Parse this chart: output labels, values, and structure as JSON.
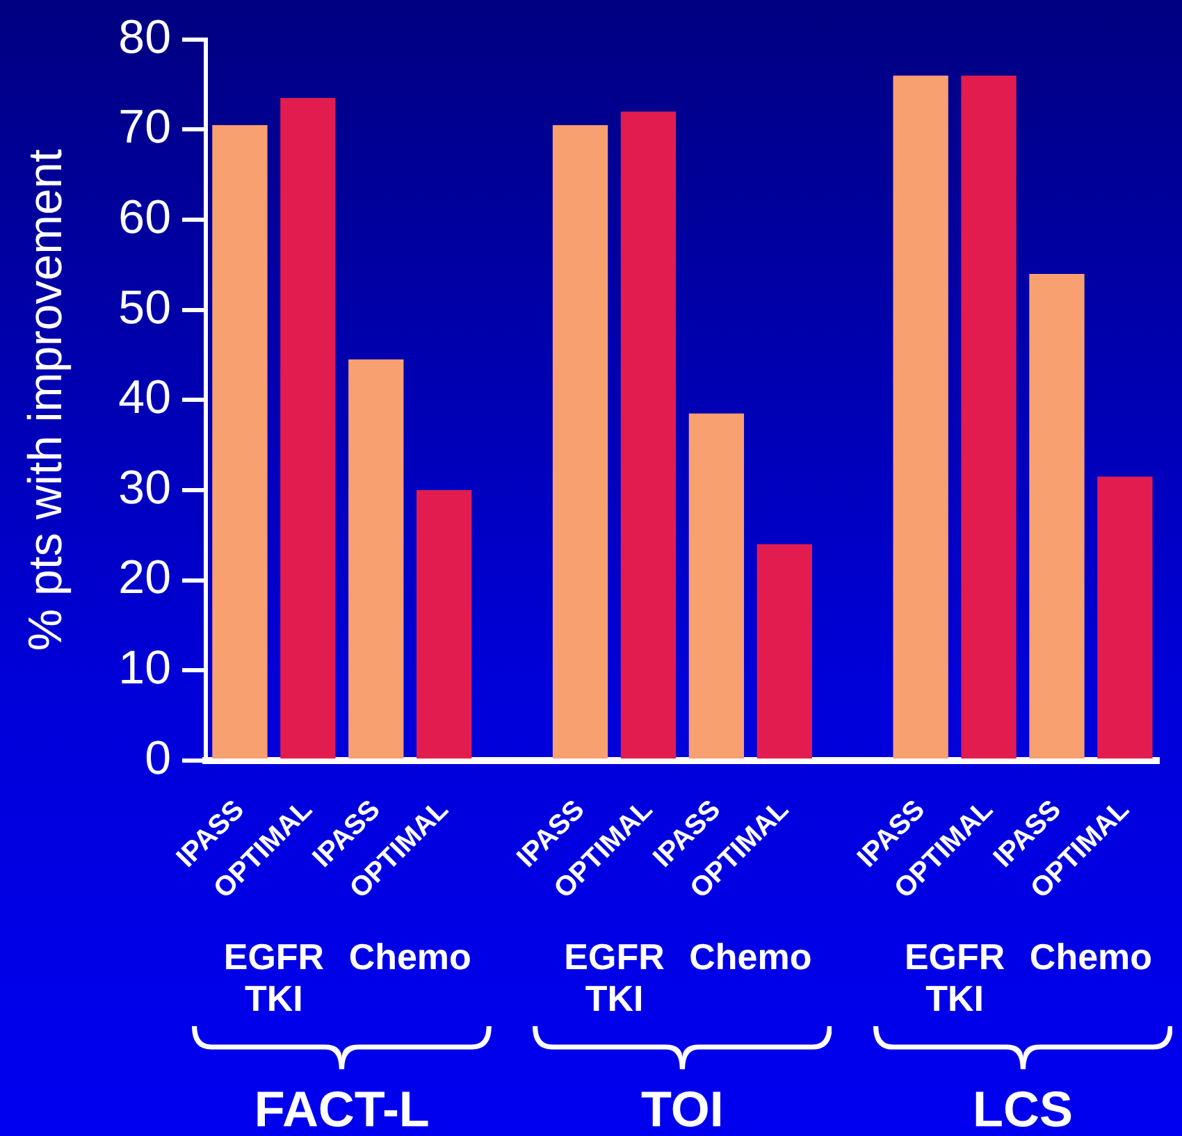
{
  "chart_data": {
    "type": "bar",
    "ylabel": "% pts with improvement",
    "categories": [
      "IPASS",
      "OPTIMAL",
      "IPASS",
      "OPTIMAL",
      null,
      "IPASS",
      "OPTIMAL",
      "IPASS",
      "OPTIMAL",
      null,
      "IPASS",
      "OPTIMAL",
      "IPASS",
      "OPTIMAL"
    ],
    "values": [
      70.5,
      73.5,
      44.5,
      30,
      null,
      70.5,
      72,
      38.5,
      24,
      null,
      76,
      76,
      54,
      31.5
    ],
    "colors": [
      "#f9a070",
      "#e31c50",
      "#f9a070",
      "#e31c50",
      null,
      "#f9a070",
      "#e31c50",
      "#f9a070",
      "#e31c50",
      null,
      "#f9a070",
      "#e31c50",
      "#f9a070",
      "#e31c50"
    ],
    "ylim": [
      0,
      80
    ],
    "yticks": [
      0,
      10,
      20,
      30,
      40,
      50,
      60,
      70,
      80
    ],
    "annotations": [
      "EGFR TKI",
      "Chemo",
      "EGFR TKI",
      "Chemo",
      "EGFR TKI",
      "Chemo",
      "FACT-L",
      "TOI",
      "LCS"
    ]
  }
}
